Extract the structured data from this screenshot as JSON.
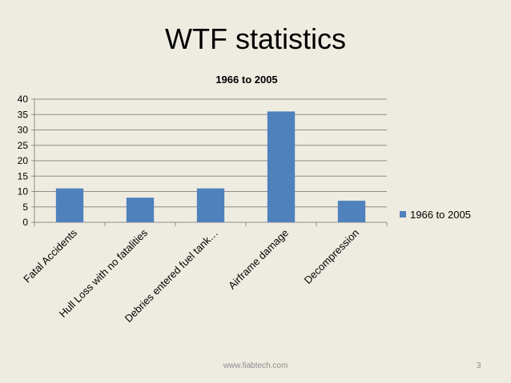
{
  "slide": {
    "title": "WTF statistics",
    "footer": "www.fiabtech.com",
    "page_number": "3"
  },
  "chart_data": {
    "type": "bar",
    "title": "1966 to 2005",
    "xlabel": "",
    "ylabel": "",
    "categories": [
      "Fatal Accidents",
      "Hull Loss with no fatalities",
      "Debries entered fuel tank…",
      "Airframe damage",
      "Decompression"
    ],
    "series": [
      {
        "name": "1966 to 2005",
        "values": [
          11,
          8,
          11,
          36,
          7
        ],
        "color": "#4f81bd"
      }
    ],
    "ylim": [
      0,
      40
    ],
    "yticks": [
      0,
      5,
      10,
      15,
      20,
      25,
      30,
      35,
      40
    ],
    "grid": true,
    "legend": "right"
  }
}
